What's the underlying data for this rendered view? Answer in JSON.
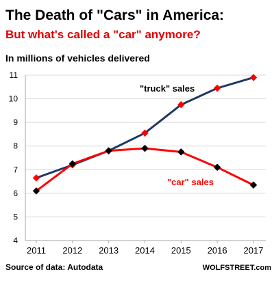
{
  "colors": {
    "subtitle": "#e00000",
    "truck_line": "#1f3864",
    "car_line": "#ff0000",
    "truck_marker": "#ff0000",
    "car_marker": "#000000",
    "grid": "#d9d9d9",
    "axis": "#a6a6a6"
  },
  "chart_data": {
    "type": "line",
    "title": "The Death of \"Cars\" in America:",
    "subtitle": "But what's called a \"car\" anymore?",
    "ylabel": "In millions of vehicles delivered",
    "xlabel": "",
    "categories": [
      "2011",
      "2012",
      "2013",
      "2014",
      "2015",
      "2016",
      "2017"
    ],
    "ylim": [
      4,
      11
    ],
    "yticks": [
      "4",
      "5",
      "6",
      "7",
      "8",
      "9",
      "10",
      "11"
    ],
    "grid": true,
    "series": [
      {
        "name": "\"truck\" sales",
        "values": [
          6.65,
          7.2,
          7.8,
          8.55,
          9.75,
          10.45,
          10.9
        ],
        "color": "#1f3864",
        "marker": "diamond-red"
      },
      {
        "name": "\"car\" sales",
        "values": [
          6.1,
          7.25,
          7.8,
          7.9,
          7.75,
          7.1,
          6.35
        ],
        "color": "#ff0000",
        "marker": "diamond-black"
      }
    ],
    "source": "Source of data: Autodata",
    "brand": "WOLFSTREET.com"
  }
}
